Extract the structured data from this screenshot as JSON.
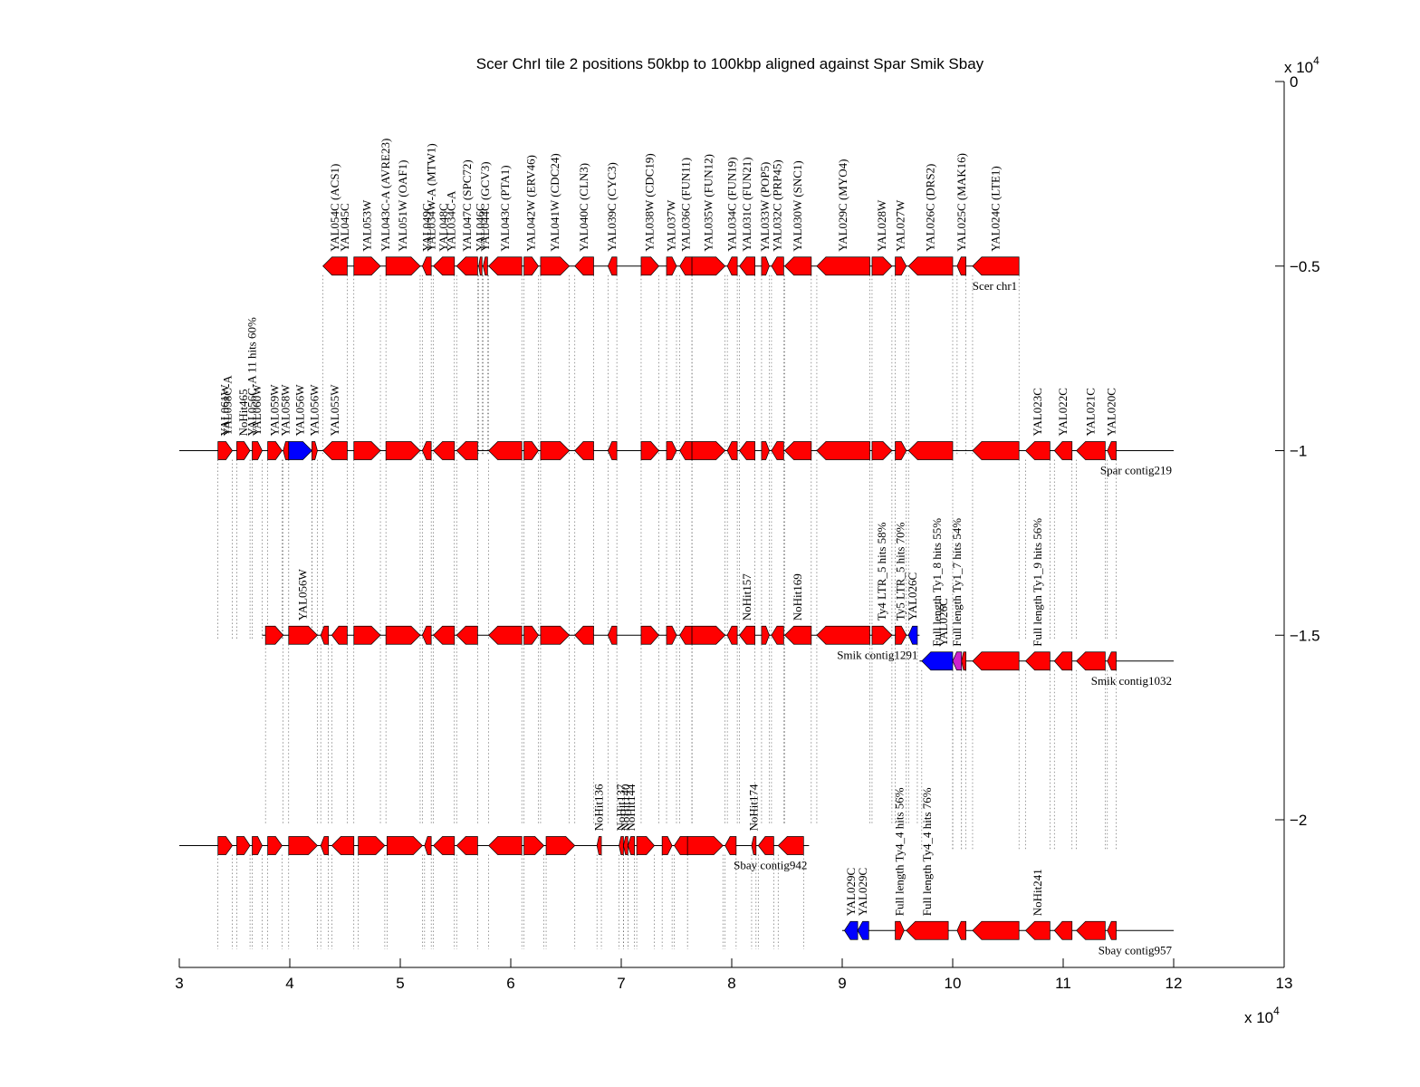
{
  "title": "Scer ChrI tile 2 positions 50kbp to 100kbp aligned against Spar Smik Sbay",
  "x_axis": {
    "ticks": [
      "3",
      "4",
      "5",
      "6",
      "7",
      "8",
      "9",
      "10",
      "11",
      "12",
      "13"
    ],
    "tick_values": [
      3,
      4,
      5,
      6,
      7,
      8,
      9,
      10,
      11,
      12,
      13
    ],
    "exponent_label": "x 10",
    "exponent": "4",
    "range": [
      3,
      13
    ]
  },
  "y_axis": {
    "ticks": [
      "0",
      "−0.5",
      "−1",
      "−1.5",
      "−2"
    ],
    "tick_values": [
      0,
      -0.5,
      -1,
      -1.5,
      -2
    ],
    "exponent_label": "x 10",
    "exponent": "4",
    "range": [
      -2.4,
      0
    ]
  },
  "colors": {
    "gene": "#ff0000",
    "special": "#0000ff",
    "magenta": "#cc22cc",
    "background": "#ffffff"
  },
  "tracks": [
    {
      "name": "Scer chr1",
      "y": -0.5,
      "x_start": 4.3,
      "x_end": 10.6,
      "genes": [
        {
          "s": 4.3,
          "e": 4.52,
          "dir": "L",
          "label": "YAL054C (ACS1)"
        },
        {
          "s": 4.58,
          "e": 4.82,
          "dir": "R",
          "label": "YAL053W"
        },
        {
          "s": 4.87,
          "e": 5.18,
          "dir": "R",
          "label": "YAL051W (OAF1)"
        },
        {
          "s": 5.2,
          "e": 5.28,
          "dir": "L",
          "label": "YAL049C"
        },
        {
          "s": 5.3,
          "e": 5.49,
          "dir": "L",
          "label": "YAL048C"
        },
        {
          "s": 5.51,
          "e": 5.7,
          "dir": "L",
          "label": "YAL047C (SPC72)"
        },
        {
          "s": 5.71,
          "e": 5.74,
          "dir": "L",
          "label": "YAL046C"
        },
        {
          "s": 5.75,
          "e": 5.79,
          "dir": "L",
          "label": "YAL044C (GCV3)"
        },
        {
          "s": 5.8,
          "e": 6.1,
          "dir": "L",
          "label": "YAL043C (PTA1)"
        },
        {
          "s": 6.12,
          "e": 6.25,
          "dir": "R",
          "label": "YAL042W (ERV46)"
        },
        {
          "s": 6.27,
          "e": 6.53,
          "dir": "R",
          "label": "YAL041W (CDC24)"
        },
        {
          "s": 6.58,
          "e": 6.75,
          "dir": "L",
          "label": "YAL040C (CLN3)"
        },
        {
          "s": 6.88,
          "e": 6.96,
          "dir": "L",
          "label": "YAL039C (CYC3)"
        },
        {
          "s": 7.18,
          "e": 7.34,
          "dir": "R",
          "label": "YAL038W (CDC19)"
        },
        {
          "s": 7.41,
          "e": 7.5,
          "dir": "R",
          "label": "YAL037W"
        },
        {
          "s": 7.53,
          "e": 7.64,
          "dir": "L",
          "label": "YAL036C (FUN11)"
        },
        {
          "s": 7.64,
          "e": 7.94,
          "dir": "R",
          "label": "YAL035W (FUN12)"
        },
        {
          "s": 7.96,
          "e": 8.05,
          "dir": "L",
          "label": "YAL034C (FUN19)"
        },
        {
          "s": 8.07,
          "e": 8.21,
          "dir": "L",
          "label": "YAL031C (FUN21)"
        },
        {
          "s": 8.27,
          "e": 8.34,
          "dir": "R",
          "label": "YAL033W (POP5)"
        },
        {
          "s": 8.36,
          "e": 8.47,
          "dir": "L",
          "label": "YAL032C (PRP45)"
        },
        {
          "s": 8.48,
          "e": 8.72,
          "dir": "L",
          "label": "YAL030W (SNC1)"
        },
        {
          "s": 8.77,
          "e": 9.25,
          "dir": "L",
          "label": "YAL029C (MYO4)"
        },
        {
          "s": 9.27,
          "e": 9.45,
          "dir": "R",
          "label": "YAL028W"
        },
        {
          "s": 9.48,
          "e": 9.58,
          "dir": "R",
          "label": "YAL027W"
        },
        {
          "s": 9.6,
          "e": 10.0,
          "dir": "L",
          "label": "YAL026C (DRS2)"
        },
        {
          "s": 10.04,
          "e": 10.12,
          "dir": "L",
          "label": "YAL025C (MAK16)"
        },
        {
          "s": 10.18,
          "e": 10.6,
          "dir": "L",
          "label": "YAL024C (LTE1)"
        }
      ],
      "extra_labels": [
        "YAL045C",
        "YAL043C-A (AVRE23)",
        "YAL034W-A (MTW1)",
        "YAL034C-A"
      ]
    },
    {
      "name": "Spar contig219",
      "y": -1.0,
      "x_start": 3.0,
      "x_end": 12.0,
      "genes": [
        {
          "s": 3.35,
          "e": 3.48,
          "dir": "R",
          "label": "YAL061W"
        },
        {
          "s": 3.52,
          "e": 3.64,
          "dir": "R",
          "label": "NoHit465"
        },
        {
          "s": 3.66,
          "e": 3.75,
          "dir": "R",
          "label": "YAL060W"
        },
        {
          "s": 3.8,
          "e": 3.93,
          "dir": "R",
          "label": "YAL059W"
        },
        {
          "s": 3.94,
          "e": 3.99,
          "dir": "L",
          "label": "YAL058W"
        },
        {
          "s": 3.99,
          "e": 4.2,
          "dir": "R",
          "label": "YAL056W",
          "color": "special"
        },
        {
          "s": 4.2,
          "e": 4.25,
          "dir": "R",
          "label": "YAL056W"
        },
        {
          "s": 4.3,
          "e": 4.52,
          "dir": "L",
          "label": "YAL055W"
        },
        {
          "s": 4.58,
          "e": 4.82,
          "dir": "R",
          "label": ""
        },
        {
          "s": 4.87,
          "e": 5.18,
          "dir": "R",
          "label": ""
        },
        {
          "s": 5.2,
          "e": 5.28,
          "dir": "L",
          "label": ""
        },
        {
          "s": 5.3,
          "e": 5.49,
          "dir": "L",
          "label": ""
        },
        {
          "s": 5.51,
          "e": 5.7,
          "dir": "L",
          "label": ""
        },
        {
          "s": 5.8,
          "e": 6.1,
          "dir": "L",
          "label": ""
        },
        {
          "s": 6.12,
          "e": 6.25,
          "dir": "R",
          "label": ""
        },
        {
          "s": 6.27,
          "e": 6.53,
          "dir": "R",
          "label": ""
        },
        {
          "s": 6.58,
          "e": 6.75,
          "dir": "L",
          "label": ""
        },
        {
          "s": 6.88,
          "e": 6.96,
          "dir": "L",
          "label": ""
        },
        {
          "s": 7.18,
          "e": 7.34,
          "dir": "R",
          "label": ""
        },
        {
          "s": 7.41,
          "e": 7.5,
          "dir": "R",
          "label": ""
        },
        {
          "s": 7.53,
          "e": 7.64,
          "dir": "L",
          "label": ""
        },
        {
          "s": 7.64,
          "e": 7.94,
          "dir": "R",
          "label": ""
        },
        {
          "s": 7.96,
          "e": 8.05,
          "dir": "L",
          "label": ""
        },
        {
          "s": 8.07,
          "e": 8.21,
          "dir": "L",
          "label": ""
        },
        {
          "s": 8.27,
          "e": 8.34,
          "dir": "R",
          "label": ""
        },
        {
          "s": 8.36,
          "e": 8.47,
          "dir": "L",
          "label": ""
        },
        {
          "s": 8.48,
          "e": 8.72,
          "dir": "L",
          "label": ""
        },
        {
          "s": 8.77,
          "e": 9.25,
          "dir": "L",
          "label": ""
        },
        {
          "s": 9.27,
          "e": 9.45,
          "dir": "R",
          "label": ""
        },
        {
          "s": 9.48,
          "e": 9.58,
          "dir": "R",
          "label": ""
        },
        {
          "s": 9.6,
          "e": 10.0,
          "dir": "L",
          "label": ""
        },
        {
          "s": 10.18,
          "e": 10.6,
          "dir": "L",
          "label": ""
        },
        {
          "s": 10.66,
          "e": 10.88,
          "dir": "L",
          "label": "YAL023C"
        },
        {
          "s": 10.92,
          "e": 11.08,
          "dir": "L",
          "label": "YAL022C"
        },
        {
          "s": 11.12,
          "e": 11.38,
          "dir": "L",
          "label": "YAL021C"
        },
        {
          "s": 11.4,
          "e": 11.48,
          "dir": "L",
          "label": "YAL020C"
        }
      ],
      "extra_labels": [
        "YAL058C-A",
        "YAL056C-A 11 hits 60%"
      ]
    },
    {
      "name": "Smik contig1291",
      "y": -1.5,
      "x_start": 3.75,
      "x_end": 9.7,
      "genes": [
        {
          "s": 3.78,
          "e": 3.94,
          "dir": "R",
          "label": ""
        },
        {
          "s": 3.99,
          "e": 4.25,
          "dir": "R",
          "label": "YAL056W"
        },
        {
          "s": 4.28,
          "e": 4.35,
          "dir": "L",
          "label": ""
        },
        {
          "s": 4.38,
          "e": 4.52,
          "dir": "L",
          "label": ""
        },
        {
          "s": 4.58,
          "e": 4.82,
          "dir": "R",
          "label": ""
        },
        {
          "s": 4.87,
          "e": 5.18,
          "dir": "R",
          "label": ""
        },
        {
          "s": 5.2,
          "e": 5.28,
          "dir": "L",
          "label": ""
        },
        {
          "s": 5.3,
          "e": 5.49,
          "dir": "L",
          "label": ""
        },
        {
          "s": 5.51,
          "e": 5.7,
          "dir": "L",
          "label": ""
        },
        {
          "s": 5.8,
          "e": 6.1,
          "dir": "L",
          "label": ""
        },
        {
          "s": 6.12,
          "e": 6.25,
          "dir": "R",
          "label": ""
        },
        {
          "s": 6.27,
          "e": 6.53,
          "dir": "R",
          "label": ""
        },
        {
          "s": 6.58,
          "e": 6.75,
          "dir": "L",
          "label": ""
        },
        {
          "s": 6.88,
          "e": 6.96,
          "dir": "L",
          "label": ""
        },
        {
          "s": 7.18,
          "e": 7.34,
          "dir": "R",
          "label": ""
        },
        {
          "s": 7.41,
          "e": 7.5,
          "dir": "R",
          "label": ""
        },
        {
          "s": 7.53,
          "e": 7.64,
          "dir": "L",
          "label": ""
        },
        {
          "s": 7.64,
          "e": 7.94,
          "dir": "R",
          "label": ""
        },
        {
          "s": 7.96,
          "e": 8.05,
          "dir": "L",
          "label": ""
        },
        {
          "s": 8.07,
          "e": 8.21,
          "dir": "L",
          "label": "NoHit157"
        },
        {
          "s": 8.27,
          "e": 8.34,
          "dir": "R",
          "label": ""
        },
        {
          "s": 8.36,
          "e": 8.47,
          "dir": "L",
          "label": ""
        },
        {
          "s": 8.48,
          "e": 8.72,
          "dir": "L",
          "label": "NoHit169"
        },
        {
          "s": 8.77,
          "e": 9.25,
          "dir": "L",
          "label": ""
        },
        {
          "s": 9.27,
          "e": 9.45,
          "dir": "R",
          "label": "Ty4 LTR_5 hits 58%"
        },
        {
          "s": 9.48,
          "e": 9.58,
          "dir": "R",
          "label": "Ty5 LTR_5 hits 70%"
        },
        {
          "s": 9.6,
          "e": 9.68,
          "dir": "L",
          "label": "YAL026C",
          "color": "special"
        }
      ],
      "extra_labels": []
    },
    {
      "name": "Smik contig1032",
      "y": -1.57,
      "x_start": 9.7,
      "x_end": 12.0,
      "genes": [
        {
          "s": 9.72,
          "e": 10.0,
          "dir": "L",
          "label": "Full length Ty1_8 hits 55%",
          "color": "special"
        },
        {
          "s": 10.0,
          "e": 10.08,
          "dir": "L",
          "label": "Full length Ty1_7 hits 54%",
          "color": "magenta"
        },
        {
          "s": 10.08,
          "e": 10.12,
          "dir": "L",
          "label": ""
        },
        {
          "s": 10.18,
          "e": 10.6,
          "dir": "L",
          "label": ""
        },
        {
          "s": 10.66,
          "e": 10.88,
          "dir": "L",
          "label": "Full length Ty1_9 hits 56%"
        },
        {
          "s": 10.92,
          "e": 11.08,
          "dir": "L",
          "label": ""
        },
        {
          "s": 11.12,
          "e": 11.38,
          "dir": "L",
          "label": ""
        },
        {
          "s": 11.4,
          "e": 11.48,
          "dir": "L",
          "label": ""
        }
      ],
      "extra_labels": [
        "YAL026C"
      ]
    },
    {
      "name": "Sbay contig942",
      "y": -2.07,
      "x_start": 3.0,
      "x_end": 8.7,
      "genes": [
        {
          "s": 3.35,
          "e": 3.48,
          "dir": "R",
          "label": ""
        },
        {
          "s": 3.52,
          "e": 3.64,
          "dir": "R",
          "label": ""
        },
        {
          "s": 3.66,
          "e": 3.75,
          "dir": "R",
          "label": ""
        },
        {
          "s": 3.8,
          "e": 3.93,
          "dir": "R",
          "label": ""
        },
        {
          "s": 3.99,
          "e": 4.25,
          "dir": "R",
          "label": ""
        },
        {
          "s": 4.28,
          "e": 4.35,
          "dir": "L",
          "label": ""
        },
        {
          "s": 4.38,
          "e": 4.58,
          "dir": "L",
          "label": ""
        },
        {
          "s": 4.62,
          "e": 4.86,
          "dir": "R",
          "label": ""
        },
        {
          "s": 4.88,
          "e": 5.2,
          "dir": "R",
          "label": ""
        },
        {
          "s": 5.22,
          "e": 5.28,
          "dir": "L",
          "label": ""
        },
        {
          "s": 5.3,
          "e": 5.49,
          "dir": "L",
          "label": ""
        },
        {
          "s": 5.51,
          "e": 5.7,
          "dir": "L",
          "label": ""
        },
        {
          "s": 5.8,
          "e": 6.1,
          "dir": "L",
          "label": ""
        },
        {
          "s": 6.12,
          "e": 6.3,
          "dir": "R",
          "label": ""
        },
        {
          "s": 6.32,
          "e": 6.58,
          "dir": "R",
          "label": ""
        },
        {
          "s": 6.78,
          "e": 6.82,
          "dir": "L",
          "label": "NoHit136"
        },
        {
          "s": 6.98,
          "e": 7.02,
          "dir": "L",
          "label": "NoHit137"
        },
        {
          "s": 7.02,
          "e": 7.06,
          "dir": "L",
          "label": "NoHit140"
        },
        {
          "s": 7.06,
          "e": 7.12,
          "dir": "L",
          "label": "NoHit144"
        },
        {
          "s": 7.14,
          "e": 7.3,
          "dir": "R",
          "label": ""
        },
        {
          "s": 7.37,
          "e": 7.46,
          "dir": "R",
          "label": ""
        },
        {
          "s": 7.48,
          "e": 7.6,
          "dir": "L",
          "label": ""
        },
        {
          "s": 7.6,
          "e": 7.92,
          "dir": "R",
          "label": ""
        },
        {
          "s": 7.94,
          "e": 8.04,
          "dir": "L",
          "label": ""
        },
        {
          "s": 8.18,
          "e": 8.22,
          "dir": "L",
          "label": "NoHit174"
        },
        {
          "s": 8.24,
          "e": 8.38,
          "dir": "L",
          "label": ""
        },
        {
          "s": 8.42,
          "e": 8.65,
          "dir": "L",
          "label": ""
        }
      ],
      "extra_labels": []
    },
    {
      "name": "Sbay contig957",
      "y": -2.3,
      "x_start": 9.0,
      "x_end": 12.0,
      "genes": [
        {
          "s": 9.02,
          "e": 9.14,
          "dir": "L",
          "label": "YAL029C",
          "color": "special"
        },
        {
          "s": 9.14,
          "e": 9.24,
          "dir": "L",
          "label": "YAL029C",
          "color": "special"
        },
        {
          "s": 9.48,
          "e": 9.56,
          "dir": "R",
          "label": "Full length Ty4_4 hits 56%"
        },
        {
          "s": 9.58,
          "e": 9.96,
          "dir": "L",
          "label": "Full length Ty4_4 hits 76%"
        },
        {
          "s": 10.04,
          "e": 10.12,
          "dir": "L",
          "label": ""
        },
        {
          "s": 10.18,
          "e": 10.6,
          "dir": "L",
          "label": ""
        },
        {
          "s": 10.66,
          "e": 10.88,
          "dir": "L",
          "label": "NoHit241"
        },
        {
          "s": 10.92,
          "e": 11.08,
          "dir": "L",
          "label": ""
        },
        {
          "s": 11.12,
          "e": 11.38,
          "dir": "L",
          "label": ""
        },
        {
          "s": 11.4,
          "e": 11.48,
          "dir": "L",
          "label": ""
        }
      ],
      "extra_labels": []
    }
  ]
}
